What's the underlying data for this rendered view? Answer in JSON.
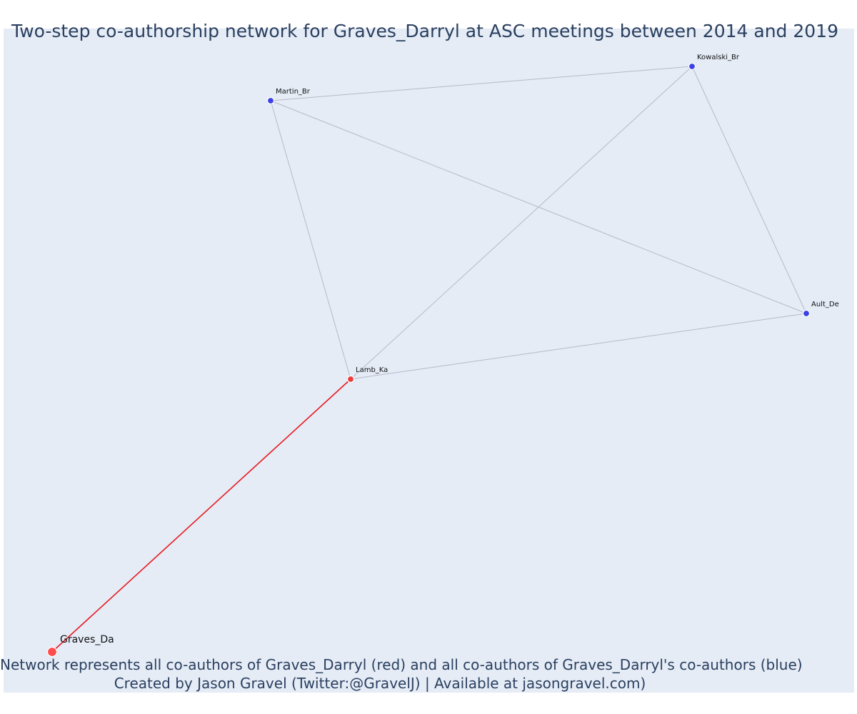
{
  "title": "Two-step co-authorship network for Graves_Darryl at ASC meetings between 2014 and 2019",
  "caption": {
    "line1": "Network represents all co-authors of Graves_Darryl (red) and all co-authors of Graves_Darryl's co-authors (blue)",
    "line2": "Created by Jason Gravel (Twitter:@GravelJ) | Available at jasongravel.com)"
  },
  "colors": {
    "background": "#e5ecf6",
    "ego_node": "#ff4d4d",
    "coauthor_node": "#ef3b3b",
    "second_step_node": "#3c41e6",
    "ego_edge": "#e8181f",
    "edge": "#b6b9c8"
  },
  "nodes": [
    {
      "id": "Graves_Da",
      "label": "Graves_Da",
      "group": "ego"
    },
    {
      "id": "Lamb_Ka",
      "label": "Lamb_Ka",
      "group": "coauthor"
    },
    {
      "id": "Martin_Br",
      "label": "Martin_Br",
      "group": "second_step"
    },
    {
      "id": "Kowalski_Br",
      "label": "Kowalski_Br",
      "group": "second_step"
    },
    {
      "id": "Ault_De",
      "label": "Ault_De",
      "group": "second_step"
    }
  ],
  "edges": [
    {
      "source": "Graves_Da",
      "target": "Lamb_Ka",
      "type": "ego"
    },
    {
      "source": "Lamb_Ka",
      "target": "Martin_Br",
      "type": "normal"
    },
    {
      "source": "Lamb_Ka",
      "target": "Kowalski_Br",
      "type": "normal"
    },
    {
      "source": "Lamb_Ka",
      "target": "Ault_De",
      "type": "normal"
    },
    {
      "source": "Martin_Br",
      "target": "Kowalski_Br",
      "type": "normal"
    },
    {
      "source": "Martin_Br",
      "target": "Ault_De",
      "type": "normal"
    },
    {
      "source": "Kowalski_Br",
      "target": "Ault_De",
      "type": "normal"
    }
  ]
}
